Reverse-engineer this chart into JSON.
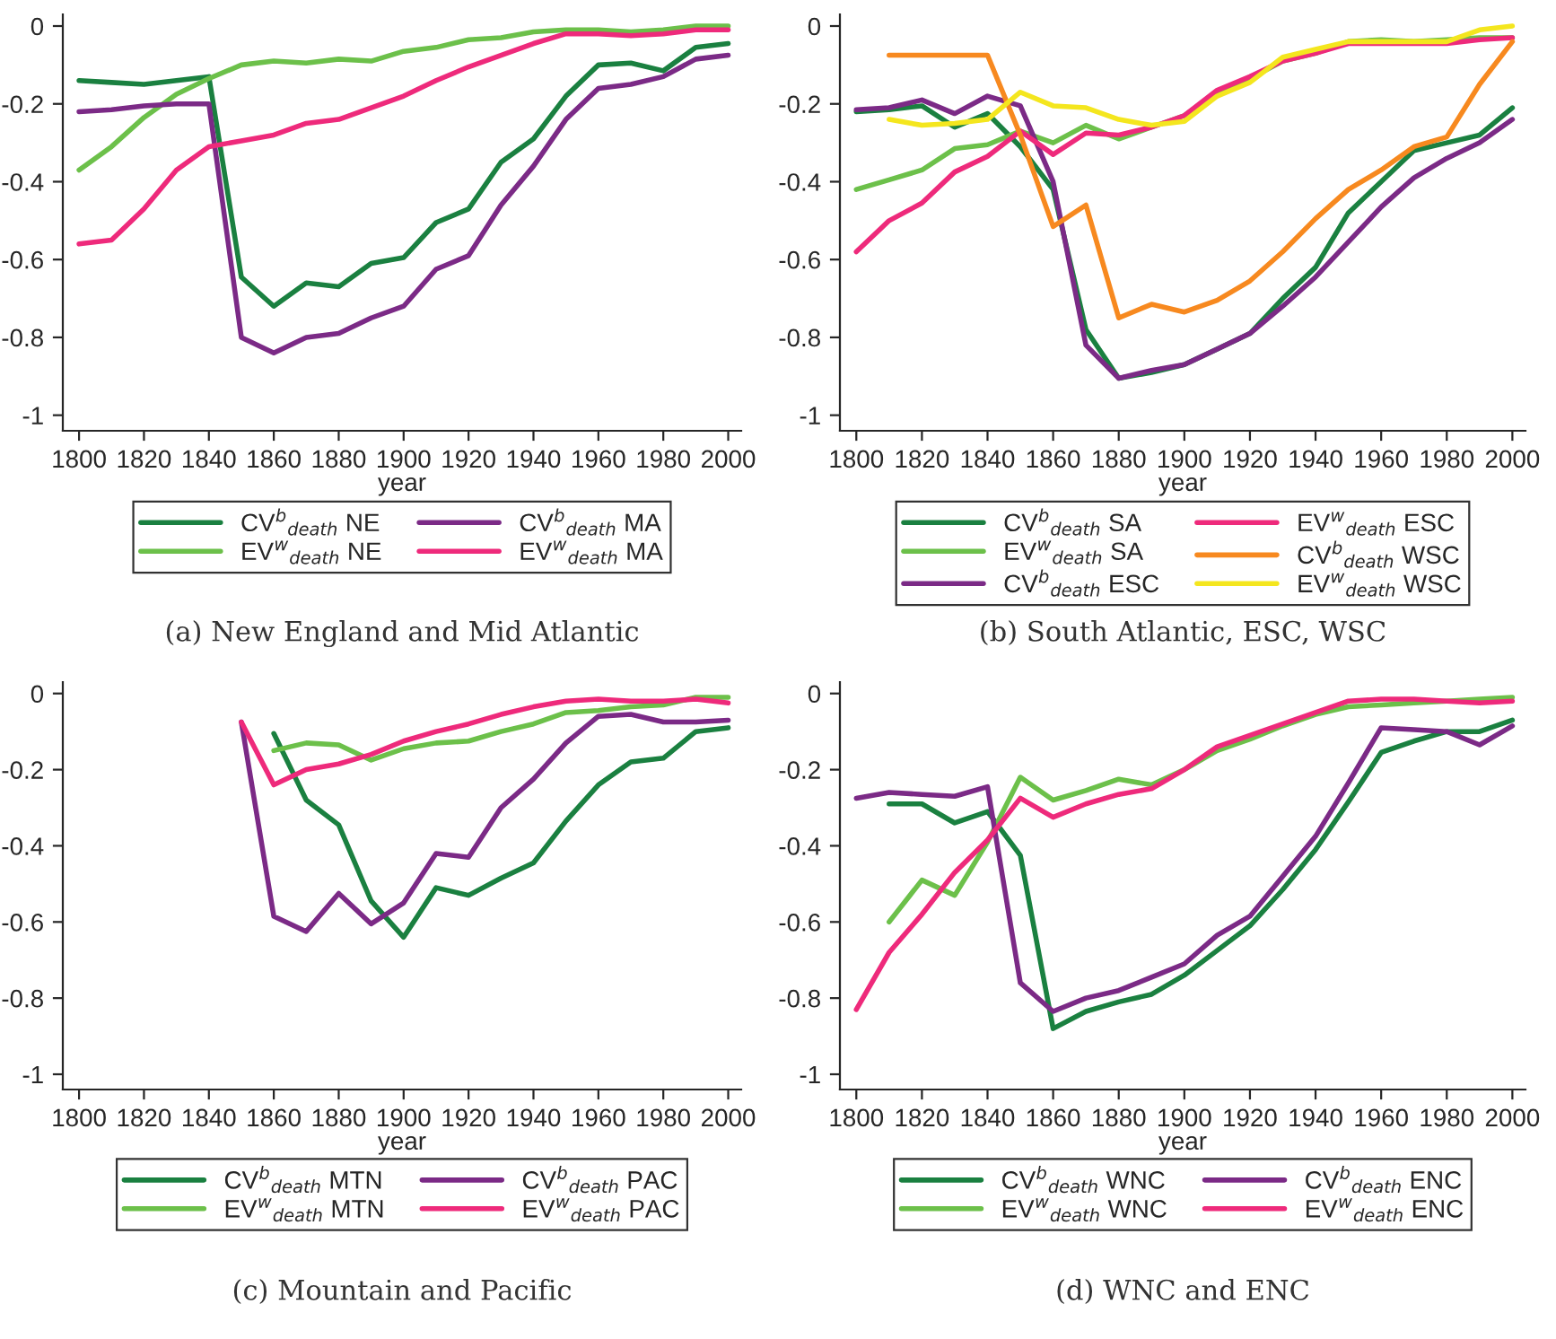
{
  "chart_data": [
    {
      "type": "line",
      "title": "(a) New England and Mid Atlantic",
      "xlabel": "year",
      "xlim": [
        1795,
        2004
      ],
      "xticks": [
        1800,
        1820,
        1840,
        1860,
        1880,
        1900,
        1920,
        1940,
        1960,
        1980,
        2000
      ],
      "ylim": [
        -1.04,
        0.03
      ],
      "yticks": [
        {
          "value": -1,
          "label": "-1"
        },
        {
          "value": -0.8,
          "label": "-0.8"
        },
        {
          "value": -0.6,
          "label": "-0.6"
        },
        {
          "value": -0.4,
          "label": "-0.4"
        },
        {
          "value": -0.2,
          "label": "-0.2"
        },
        0
      ],
      "legend": "bottom",
      "grid": false,
      "x": [
        1800,
        1810,
        1820,
        1830,
        1840,
        1850,
        1860,
        1870,
        1880,
        1890,
        1900,
        1910,
        1920,
        1930,
        1940,
        1950,
        1960,
        1970,
        1980,
        1990,
        2000
      ],
      "series": [
        {
          "name": "CV$^{b}$$_{death}$ NE",
          "color": "#1a8040",
          "values": [
            -0.14,
            -0.145,
            -0.15,
            -0.14,
            -0.13,
            -0.645,
            -0.72,
            -0.66,
            -0.67,
            -0.61,
            -0.595,
            -0.505,
            -0.47,
            -0.35,
            -0.29,
            -0.18,
            -0.1,
            -0.095,
            -0.115,
            -0.055,
            -0.045
          ]
        },
        {
          "name": "EV$^{w}$$_{death}$ NE",
          "color": "#6cc04a",
          "values": [
            -0.37,
            -0.31,
            -0.235,
            -0.175,
            -0.135,
            -0.1,
            -0.09,
            -0.095,
            -0.085,
            -0.09,
            -0.065,
            -0.055,
            -0.035,
            -0.03,
            -0.015,
            -0.01,
            -0.01,
            -0.015,
            -0.01,
            0,
            0
          ]
        },
        {
          "name": "CV$^{b}$$_{death}$ MA",
          "color": "#7b2a86",
          "values": [
            -0.22,
            -0.215,
            -0.205,
            -0.2,
            -0.2,
            -0.8,
            -0.84,
            -0.8,
            -0.79,
            -0.75,
            -0.72,
            -0.625,
            -0.59,
            -0.46,
            -0.36,
            -0.24,
            -0.16,
            -0.15,
            -0.13,
            -0.085,
            -0.075
          ]
        },
        {
          "name": "EV$^{w}$$_{death}$ MA",
          "color": "#ee2a7b",
          "values": [
            -0.56,
            -0.55,
            -0.47,
            -0.37,
            -0.31,
            -0.295,
            -0.28,
            -0.25,
            -0.24,
            -0.21,
            -0.18,
            -0.14,
            -0.105,
            -0.075,
            -0.045,
            -0.02,
            -0.02,
            -0.025,
            -0.02,
            -0.01,
            -0.01
          ]
        }
      ]
    },
    {
      "type": "line",
      "title": "(b) South Atlantic, ESC, WSC",
      "xlabel": "year",
      "xlim": [
        1795,
        2004
      ],
      "xticks": [
        1800,
        1820,
        1840,
        1860,
        1880,
        1900,
        1920,
        1940,
        1960,
        1980,
        2000
      ],
      "ylim": [
        -1.04,
        0.03
      ],
      "yticks": [
        {
          "value": -1,
          "label": "-1"
        },
        {
          "value": -0.8,
          "label": "-0.8"
        },
        {
          "value": -0.6,
          "label": "-0.6"
        },
        {
          "value": -0.4,
          "label": "-0.4"
        },
        {
          "value": -0.2,
          "label": "-0.2"
        },
        0
      ],
      "legend": "bottom",
      "grid": false,
      "x": [
        1800,
        1810,
        1820,
        1830,
        1840,
        1850,
        1860,
        1870,
        1880,
        1890,
        1900,
        1910,
        1920,
        1930,
        1940,
        1950,
        1960,
        1970,
        1980,
        1990,
        2000
      ],
      "series": [
        {
          "name": "CV$^{b}$$_{death}$ SA",
          "color": "#1a8040",
          "values": [
            -0.22,
            -0.215,
            -0.205,
            -0.26,
            -0.225,
            -0.31,
            -0.42,
            -0.78,
            -0.905,
            -0.89,
            -0.87,
            -0.83,
            -0.79,
            -0.7,
            -0.62,
            -0.48,
            -0.4,
            -0.32,
            -0.3,
            -0.28,
            -0.21
          ]
        },
        {
          "name": "EV$^{w}$$_{death}$ SA",
          "color": "#6cc04a",
          "values": [
            -0.42,
            -0.395,
            -0.37,
            -0.315,
            -0.305,
            -0.27,
            -0.3,
            -0.255,
            -0.29,
            -0.26,
            -0.23,
            -0.17,
            -0.135,
            -0.09,
            -0.07,
            -0.04,
            -0.035,
            -0.04,
            -0.035,
            -0.03,
            -0.03
          ]
        },
        {
          "name": "CV$^{b}$$_{death}$ ESC",
          "color": "#7b2a86",
          "values": [
            -0.215,
            -0.21,
            -0.19,
            -0.225,
            -0.18,
            -0.205,
            -0.4,
            -0.82,
            -0.905,
            -0.885,
            -0.87,
            -0.83,
            -0.79,
            -0.72,
            -0.645,
            -0.555,
            -0.465,
            -0.39,
            -0.34,
            -0.3,
            -0.24
          ]
        },
        {
          "name": "EV$^{w}$$_{death}$ ESC",
          "color": "#ee2a7b",
          "values": [
            -0.58,
            -0.5,
            -0.455,
            -0.375,
            -0.335,
            -0.27,
            -0.33,
            -0.275,
            -0.28,
            -0.26,
            -0.23,
            -0.165,
            -0.13,
            -0.09,
            -0.07,
            -0.045,
            -0.045,
            -0.045,
            -0.045,
            -0.035,
            -0.03
          ]
        },
        {
          "name": "CV$^{b}$$_{death}$ WSC",
          "color": "#f7891f",
          "values": [
            null,
            -0.075,
            -0.075,
            -0.075,
            -0.075,
            -0.28,
            -0.515,
            -0.46,
            -0.75,
            -0.715,
            -0.735,
            -0.705,
            -0.655,
            -0.58,
            -0.495,
            -0.42,
            -0.37,
            -0.31,
            -0.285,
            -0.15,
            -0.04
          ]
        },
        {
          "name": "EV$^{w}$$_{death}$ WSC",
          "color": "#f4e61e",
          "values": [
            null,
            -0.24,
            -0.255,
            -0.25,
            -0.24,
            -0.17,
            -0.205,
            -0.21,
            -0.24,
            -0.255,
            -0.245,
            -0.18,
            -0.145,
            -0.08,
            -0.06,
            -0.04,
            -0.04,
            -0.04,
            -0.04,
            -0.01,
            0
          ]
        }
      ]
    },
    {
      "type": "line",
      "title": "(c) Mountain and Pacific",
      "xlabel": "year",
      "xlim": [
        1795,
        2004
      ],
      "xticks": [
        1800,
        1820,
        1840,
        1860,
        1880,
        1900,
        1920,
        1940,
        1960,
        1980,
        2000
      ],
      "ylim": [
        -1.04,
        0.03
      ],
      "yticks": [
        {
          "value": -1,
          "label": "-1"
        },
        {
          "value": -0.8,
          "label": "-0.8"
        },
        {
          "value": -0.6,
          "label": "-0.6"
        },
        {
          "value": -0.4,
          "label": "-0.4"
        },
        {
          "value": -0.2,
          "label": "-0.2"
        },
        0
      ],
      "legend": "bottom",
      "grid": false,
      "x": [
        1850,
        1860,
        1870,
        1880,
        1890,
        1900,
        1910,
        1920,
        1930,
        1940,
        1950,
        1960,
        1970,
        1980,
        1990,
        2000
      ],
      "series": [
        {
          "name": "CV$^{b}$$_{death}$ MTN",
          "color": "#1a8040",
          "values": [
            null,
            -0.105,
            -0.28,
            -0.345,
            -0.545,
            -0.64,
            -0.51,
            -0.53,
            -0.485,
            -0.445,
            -0.335,
            -0.24,
            -0.18,
            -0.17,
            -0.1,
            -0.09
          ]
        },
        {
          "name": "EV$^{w}$$_{death}$ MTN",
          "color": "#6cc04a",
          "values": [
            null,
            -0.15,
            -0.13,
            -0.135,
            -0.175,
            -0.145,
            -0.13,
            -0.125,
            -0.1,
            -0.08,
            -0.05,
            -0.045,
            -0.035,
            -0.03,
            -0.01,
            -0.01
          ]
        },
        {
          "name": "CV$^{b}$$_{death}$ PAC",
          "color": "#7b2a86",
          "values": [
            -0.075,
            -0.585,
            -0.625,
            -0.525,
            -0.605,
            -0.55,
            -0.42,
            -0.43,
            -0.3,
            -0.225,
            -0.13,
            -0.06,
            -0.055,
            -0.075,
            -0.075,
            -0.07
          ]
        },
        {
          "name": "EV$^{w}$$_{death}$ PAC",
          "color": "#ee2a7b",
          "values": [
            -0.075,
            -0.24,
            -0.2,
            -0.185,
            -0.16,
            -0.125,
            -0.1,
            -0.08,
            -0.055,
            -0.035,
            -0.02,
            -0.015,
            -0.02,
            -0.02,
            -0.015,
            -0.025
          ]
        }
      ]
    },
    {
      "type": "line",
      "title": "(d) WNC and ENC",
      "xlabel": "year",
      "xlim": [
        1795,
        2004
      ],
      "xticks": [
        1800,
        1820,
        1840,
        1860,
        1880,
        1900,
        1920,
        1940,
        1960,
        1980,
        2000
      ],
      "ylim": [
        -1.04,
        0.03
      ],
      "yticks": [
        {
          "value": -1,
          "label": "-1"
        },
        {
          "value": -0.8,
          "label": "-0.8"
        },
        {
          "value": -0.6,
          "label": "-0.6"
        },
        {
          "value": -0.4,
          "label": "-0.4"
        },
        {
          "value": -0.2,
          "label": "-0.2"
        },
        0
      ],
      "legend": "bottom",
      "grid": false,
      "x": [
        1800,
        1810,
        1820,
        1830,
        1840,
        1850,
        1860,
        1870,
        1880,
        1890,
        1900,
        1910,
        1920,
        1930,
        1940,
        1950,
        1960,
        1970,
        1980,
        1990,
        2000
      ],
      "series": [
        {
          "name": "CV$^{b}$$_{death}$ WNC",
          "color": "#1a8040",
          "values": [
            null,
            -0.29,
            -0.29,
            -0.34,
            -0.31,
            -0.425,
            -0.88,
            -0.835,
            -0.81,
            -0.79,
            -0.74,
            -0.675,
            -0.61,
            -0.515,
            -0.41,
            -0.285,
            -0.155,
            -0.125,
            -0.1,
            -0.1,
            -0.07
          ]
        },
        {
          "name": "EV$^{w}$$_{death}$ WNC",
          "color": "#6cc04a",
          "values": [
            null,
            -0.6,
            -0.49,
            -0.53,
            -0.39,
            -0.22,
            -0.28,
            -0.255,
            -0.225,
            -0.24,
            -0.2,
            -0.15,
            -0.12,
            -0.085,
            -0.055,
            -0.035,
            -0.03,
            -0.025,
            -0.02,
            -0.015,
            -0.01
          ]
        },
        {
          "name": "CV$^{b}$$_{death}$ ENC",
          "color": "#7b2a86",
          "values": [
            -0.275,
            -0.26,
            -0.265,
            -0.27,
            -0.245,
            -0.76,
            -0.835,
            -0.8,
            -0.78,
            -0.745,
            -0.71,
            -0.635,
            -0.585,
            -0.48,
            -0.375,
            -0.235,
            -0.09,
            -0.095,
            -0.1,
            -0.135,
            -0.085
          ]
        },
        {
          "name": "EV$^{w}$$_{death}$ ENC",
          "color": "#ee2a7b",
          "values": [
            -0.83,
            -0.68,
            -0.58,
            -0.47,
            -0.385,
            -0.275,
            -0.325,
            -0.29,
            -0.265,
            -0.25,
            -0.2,
            -0.14,
            -0.11,
            -0.08,
            -0.05,
            -0.02,
            -0.015,
            -0.015,
            -0.02,
            -0.025,
            -0.02
          ]
        }
      ]
    }
  ]
}
